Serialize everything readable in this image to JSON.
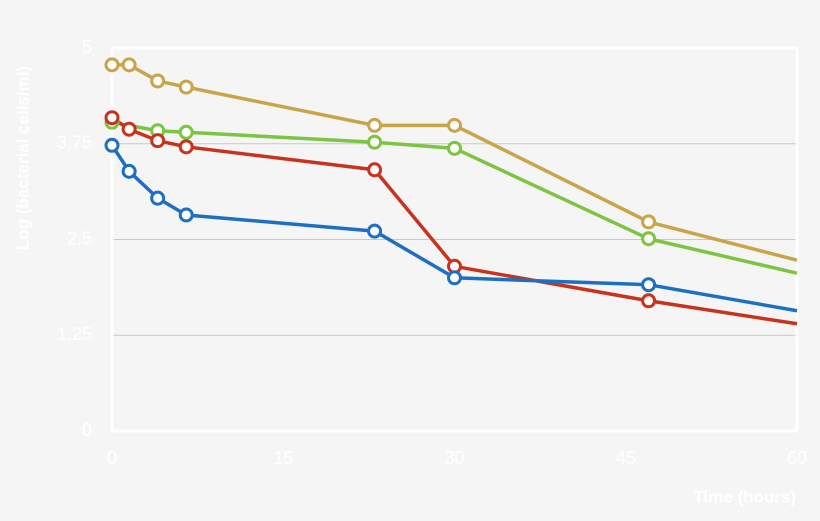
{
  "chart_data": {
    "type": "line",
    "y_label": "Log (bacterial cells/ml)",
    "x_label": "Time (hours)",
    "xlim": [
      0,
      60
    ],
    "xticks": [
      0,
      15,
      30,
      45,
      60
    ],
    "ylim": [
      0,
      5
    ],
    "yticks": [
      0,
      {
        "value": 1.25,
        "label": "1,25"
      },
      {
        "value": 2.5,
        "label": "2,5"
      },
      {
        "value": 3.75,
        "label": "3,75"
      },
      5
    ],
    "grid": true,
    "series": [
      {
        "color": "#c9a449",
        "x": [
          0,
          1.5,
          4,
          6.5,
          23,
          30,
          47,
          60
        ],
        "values": [
          4.78,
          4.78,
          4.57,
          4.49,
          3.99,
          3.99,
          2.73,
          2.23
        ]
      },
      {
        "color": "#7dc443",
        "x": [
          0,
          4,
          6.5,
          23,
          30,
          47,
          60
        ],
        "values": [
          4.03,
          3.92,
          3.9,
          3.77,
          3.69,
          2.51,
          2.06
        ]
      },
      {
        "color": "#c9321d",
        "x": [
          0,
          1.5,
          4,
          6.5,
          23,
          30,
          47,
          60
        ],
        "values": [
          4.09,
          3.94,
          3.79,
          3.71,
          3.41,
          2.15,
          1.7,
          1.4
        ]
      },
      {
        "color": "#1d6fc4",
        "x": [
          0,
          1.5,
          4,
          6.5,
          23,
          30,
          47,
          60
        ],
        "values": [
          3.73,
          3.39,
          3.04,
          2.82,
          2.61,
          2.0,
          1.91,
          1.57
        ]
      }
    ]
  }
}
